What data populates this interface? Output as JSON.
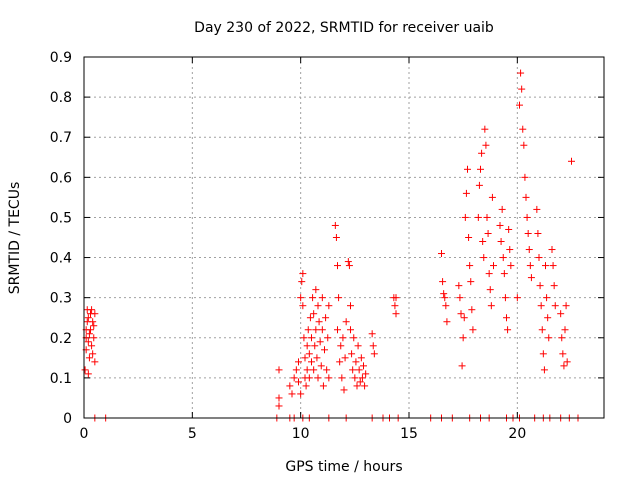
{
  "chart_data": {
    "type": "scatter",
    "title": "Day 230 of 2022, SRMTID for receiver uaib",
    "xlabel": "GPS time / hours",
    "ylabel": "SRMTID / TECUs",
    "xlim": [
      0,
      24
    ],
    "ylim": [
      0,
      0.9
    ],
    "grid": true,
    "xticks": [
      0,
      5,
      10,
      15,
      20
    ],
    "yticks": [
      0,
      0.1,
      0.2,
      0.3,
      0.4,
      0.5,
      0.6,
      0.7,
      0.8,
      0.9
    ],
    "xtick_labels": [
      "0",
      "5",
      "10",
      "15",
      "20"
    ],
    "ytick_labels": [
      "0",
      "0.1",
      "0.2",
      "0.3",
      "0.4",
      "0.5",
      "0.6",
      "0.7",
      "0.8",
      "0.9"
    ],
    "marker": "+",
    "color": "#ff0000",
    "series": [
      {
        "name": "SRMTID",
        "points": [
          [
            0.05,
            0.12
          ],
          [
            0.1,
            0.17
          ],
          [
            0.1,
            0.2
          ],
          [
            0.15,
            0.24
          ],
          [
            0.15,
            0.27
          ],
          [
            0.2,
            0.19
          ],
          [
            0.2,
            0.25
          ],
          [
            0.25,
            0.21
          ],
          [
            0.25,
            0.15
          ],
          [
            0.3,
            0.26
          ],
          [
            0.3,
            0.22
          ],
          [
            0.35,
            0.18
          ],
          [
            0.35,
            0.27
          ],
          [
            0.4,
            0.24
          ],
          [
            0.4,
            0.16
          ],
          [
            0.45,
            0.2
          ],
          [
            0.45,
            0.23
          ],
          [
            0.5,
            0.26
          ],
          [
            0.5,
            0.14
          ],
          [
            0.2,
            0.11
          ],
          [
            0.1,
            0.22
          ],
          [
            9.0,
            0.12
          ],
          [
            9.0,
            0.05
          ],
          [
            9.0,
            0.03
          ],
          [
            9.5,
            0.08
          ],
          [
            9.6,
            0.06
          ],
          [
            9.7,
            0.1
          ],
          [
            9.8,
            0.12
          ],
          [
            9.9,
            0.09
          ],
          [
            9.9,
            0.14
          ],
          [
            10.0,
            0.06
          ],
          [
            10.0,
            0.3
          ],
          [
            10.05,
            0.34
          ],
          [
            10.1,
            0.36
          ],
          [
            10.1,
            0.28
          ],
          [
            10.15,
            0.2
          ],
          [
            10.2,
            0.1
          ],
          [
            10.2,
            0.15
          ],
          [
            10.25,
            0.08
          ],
          [
            10.3,
            0.12
          ],
          [
            10.3,
            0.18
          ],
          [
            10.35,
            0.22
          ],
          [
            10.4,
            0.16
          ],
          [
            10.4,
            0.1
          ],
          [
            10.45,
            0.25
          ],
          [
            10.5,
            0.2
          ],
          [
            10.5,
            0.14
          ],
          [
            10.55,
            0.3
          ],
          [
            10.6,
            0.26
          ],
          [
            10.6,
            0.12
          ],
          [
            10.65,
            0.18
          ],
          [
            10.7,
            0.32
          ],
          [
            10.7,
            0.22
          ],
          [
            10.75,
            0.15
          ],
          [
            10.8,
            0.1
          ],
          [
            10.8,
            0.28
          ],
          [
            10.85,
            0.24
          ],
          [
            10.9,
            0.19
          ],
          [
            10.95,
            0.13
          ],
          [
            11.0,
            0.3
          ],
          [
            11.0,
            0.22
          ],
          [
            11.05,
            0.08
          ],
          [
            11.1,
            0.17
          ],
          [
            11.15,
            0.25
          ],
          [
            11.2,
            0.12
          ],
          [
            11.25,
            0.2
          ],
          [
            11.3,
            0.28
          ],
          [
            11.3,
            0.1
          ],
          [
            11.6,
            0.48
          ],
          [
            11.65,
            0.45
          ],
          [
            11.7,
            0.38
          ],
          [
            11.7,
            0.22
          ],
          [
            11.75,
            0.3
          ],
          [
            11.8,
            0.14
          ],
          [
            11.85,
            0.18
          ],
          [
            11.9,
            0.1
          ],
          [
            11.95,
            0.2
          ],
          [
            12.0,
            0.07
          ],
          [
            12.05,
            0.15
          ],
          [
            12.1,
            0.24
          ],
          [
            12.2,
            0.39
          ],
          [
            12.25,
            0.38
          ],
          [
            12.3,
            0.28
          ],
          [
            12.3,
            0.22
          ],
          [
            12.35,
            0.16
          ],
          [
            12.4,
            0.12
          ],
          [
            12.45,
            0.2
          ],
          [
            12.5,
            0.1
          ],
          [
            12.55,
            0.14
          ],
          [
            12.6,
            0.08
          ],
          [
            12.65,
            0.18
          ],
          [
            12.7,
            0.12
          ],
          [
            12.75,
            0.09
          ],
          [
            12.8,
            0.15
          ],
          [
            12.85,
            0.1
          ],
          [
            12.9,
            0.13
          ],
          [
            12.95,
            0.08
          ],
          [
            13.0,
            0.11
          ],
          [
            13.3,
            0.21
          ],
          [
            13.35,
            0.18
          ],
          [
            13.4,
            0.16
          ],
          [
            14.3,
            0.3
          ],
          [
            14.35,
            0.28
          ],
          [
            14.4,
            0.26
          ],
          [
            14.4,
            0.3
          ],
          [
            16.5,
            0.41
          ],
          [
            16.55,
            0.34
          ],
          [
            16.6,
            0.31
          ],
          [
            16.65,
            0.3
          ],
          [
            16.7,
            0.28
          ],
          [
            16.75,
            0.24
          ],
          [
            17.3,
            0.33
          ],
          [
            17.35,
            0.3
          ],
          [
            17.4,
            0.26
          ],
          [
            17.45,
            0.13
          ],
          [
            17.5,
            0.2
          ],
          [
            17.55,
            0.25
          ],
          [
            17.6,
            0.5
          ],
          [
            17.65,
            0.56
          ],
          [
            17.7,
            0.62
          ],
          [
            17.75,
            0.45
          ],
          [
            17.8,
            0.38
          ],
          [
            17.85,
            0.34
          ],
          [
            17.9,
            0.27
          ],
          [
            17.95,
            0.22
          ],
          [
            18.2,
            0.5
          ],
          [
            18.25,
            0.58
          ],
          [
            18.3,
            0.62
          ],
          [
            18.35,
            0.66
          ],
          [
            18.4,
            0.44
          ],
          [
            18.45,
            0.4
          ],
          [
            18.5,
            0.72
          ],
          [
            18.55,
            0.68
          ],
          [
            18.6,
            0.5
          ],
          [
            18.65,
            0.46
          ],
          [
            18.7,
            0.36
          ],
          [
            18.75,
            0.32
          ],
          [
            18.8,
            0.28
          ],
          [
            18.85,
            0.55
          ],
          [
            18.9,
            0.38
          ],
          [
            19.2,
            0.48
          ],
          [
            19.25,
            0.44
          ],
          [
            19.3,
            0.52
          ],
          [
            19.35,
            0.4
          ],
          [
            19.4,
            0.36
          ],
          [
            19.45,
            0.3
          ],
          [
            19.5,
            0.25
          ],
          [
            19.55,
            0.22
          ],
          [
            19.6,
            0.47
          ],
          [
            19.65,
            0.42
          ],
          [
            19.7,
            0.38
          ],
          [
            20.0,
            0.3
          ],
          [
            20.1,
            0.78
          ],
          [
            20.15,
            0.86
          ],
          [
            20.2,
            0.82
          ],
          [
            20.25,
            0.72
          ],
          [
            20.3,
            0.68
          ],
          [
            20.35,
            0.6
          ],
          [
            20.4,
            0.55
          ],
          [
            20.45,
            0.5
          ],
          [
            20.5,
            0.46
          ],
          [
            20.55,
            0.42
          ],
          [
            20.6,
            0.38
          ],
          [
            20.65,
            0.35
          ],
          [
            20.9,
            0.52
          ],
          [
            20.95,
            0.46
          ],
          [
            21.0,
            0.4
          ],
          [
            21.05,
            0.33
          ],
          [
            21.1,
            0.28
          ],
          [
            21.15,
            0.22
          ],
          [
            21.2,
            0.16
          ],
          [
            21.25,
            0.12
          ],
          [
            21.3,
            0.38
          ],
          [
            21.35,
            0.3
          ],
          [
            21.4,
            0.25
          ],
          [
            21.45,
            0.2
          ],
          [
            21.6,
            0.42
          ],
          [
            21.65,
            0.38
          ],
          [
            21.7,
            0.33
          ],
          [
            21.75,
            0.28
          ],
          [
            22.0,
            0.26
          ],
          [
            22.05,
            0.2
          ],
          [
            22.1,
            0.16
          ],
          [
            22.15,
            0.13
          ],
          [
            22.2,
            0.22
          ],
          [
            22.25,
            0.28
          ],
          [
            22.3,
            0.14
          ],
          [
            22.5,
            0.64
          ],
          [
            0.5,
            0
          ],
          [
            1.0,
            0
          ],
          [
            8.9,
            0
          ],
          [
            9.5,
            0
          ],
          [
            9.7,
            0
          ],
          [
            10.1,
            0
          ],
          [
            10.4,
            0
          ],
          [
            11.3,
            0
          ],
          [
            12.1,
            0
          ],
          [
            13.3,
            0
          ],
          [
            13.8,
            0
          ],
          [
            14.1,
            0
          ],
          [
            14.5,
            0
          ],
          [
            16.0,
            0
          ],
          [
            16.5,
            0
          ],
          [
            17.0,
            0
          ],
          [
            17.8,
            0
          ],
          [
            18.3,
            0
          ],
          [
            18.7,
            0
          ],
          [
            19.5,
            0
          ],
          [
            19.8,
            0
          ],
          [
            20.1,
            0
          ],
          [
            20.8,
            0
          ],
          [
            21.2,
            0
          ],
          [
            21.5,
            0
          ],
          [
            22.0,
            0
          ],
          [
            22.4,
            0
          ],
          [
            22.8,
            0
          ]
        ]
      }
    ]
  }
}
